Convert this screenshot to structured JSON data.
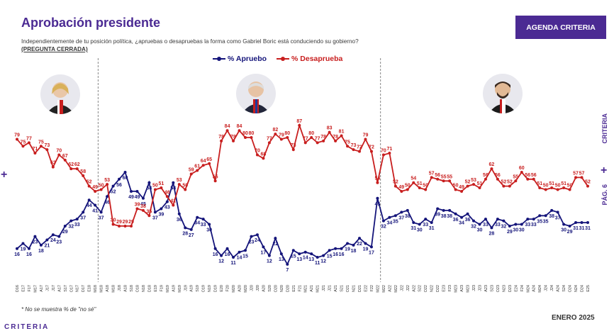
{
  "header": {
    "title": "Aprobación presidente",
    "subtitle": "Independientemente de tu posición política, ¿apruebas o desapruebas la forma como Gabriel Boric está conduciendo su gobierno?",
    "subtitle_tag": "(PREGUNTA CERRADA)",
    "brand_button": "AGENDA CRITERIA"
  },
  "side": {
    "criteria": "CRITERIA",
    "page": "PÁG. 6",
    "plus": "+"
  },
  "footer": {
    "footnote": "* No se muestra % de \"no sé\"",
    "date": "ENERO 2025",
    "logo": "CRITERIA"
  },
  "chart_data": {
    "type": "line",
    "legend_position": "top-center",
    "colors": {
      "aprueba": "#14147a",
      "desaprueba": "#c81e1e",
      "divider": "#888888"
    },
    "x": [
      "D16",
      "E17",
      "F17",
      "M17",
      "A17",
      "J17",
      "J17",
      "A17",
      "S17",
      "O17",
      "N17",
      "D17",
      "E18",
      "M18",
      "M18",
      "A18",
      "M18",
      "J18",
      "A18",
      "S18",
      "O18",
      "N18",
      "D18",
      "E19",
      "F19",
      "M19",
      "A19",
      "M19",
      "J19",
      "A19",
      "S19",
      "O19",
      "N19",
      "D19",
      "E20",
      "F20",
      "M20",
      "A20",
      "M20",
      "J20",
      "J20",
      "A20",
      "S20",
      "O20",
      "N20",
      "D20",
      "E21",
      "F21",
      "M21",
      "A21",
      "M21",
      "J21",
      "J21",
      "A21",
      "S21",
      "O21",
      "N21",
      "D21",
      "E22",
      "F22",
      "M22",
      "M22",
      "A22",
      "M22",
      "J22",
      "J22",
      "A22",
      "S22",
      "O22",
      "N22",
      "D22",
      "E23",
      "F23",
      "M23",
      "A23",
      "M23",
      "J23",
      "J23",
      "A23",
      "S23",
      "O23",
      "N23",
      "D23",
      "E24",
      "F24",
      "M24",
      "A24",
      "M24",
      "J24",
      "J24",
      "A24",
      "S24",
      "O24",
      "N24",
      "D24",
      "E25"
    ],
    "series": [
      {
        "name": "% Apruebo",
        "values": [
          16,
          19,
          16,
          23,
          18,
          21,
          24,
          23,
          29,
          32,
          33,
          37,
          44,
          41,
          37,
          46,
          52,
          56,
          60,
          49,
          49,
          45,
          54,
          37,
          39,
          43,
          54,
          36,
          28,
          27,
          34,
          33,
          30,
          16,
          12,
          16,
          11,
          14,
          15,
          23,
          24,
          17,
          12,
          22,
          13,
          7,
          15,
          13,
          14,
          13,
          11,
          12,
          15,
          16,
          16,
          19,
          18,
          22,
          19,
          17,
          45,
          32,
          34,
          35,
          37,
          38,
          31,
          30,
          33,
          31,
          39,
          38,
          38,
          36,
          34,
          36,
          32,
          30,
          33,
          28,
          33,
          32,
          29,
          30,
          30,
          33,
          33,
          35,
          35,
          38,
          37,
          30,
          29,
          31,
          31,
          31
        ]
      },
      {
        "name": "% Desaprueba",
        "values": [
          79,
          75,
          77,
          71,
          75,
          73,
          63,
          70,
          67,
          62,
          62,
          58,
          52,
          49,
          50,
          53,
          30,
          29,
          29,
          29,
          39,
          38,
          35,
          50,
          51,
          46,
          41,
          53,
          50,
          59,
          61,
          64,
          65,
          55,
          78,
          84,
          78,
          84,
          80,
          80,
          70,
          68,
          77,
          82,
          79,
          80,
          73,
          87,
          77,
          80,
          77,
          78,
          83,
          78,
          81,
          75,
          73,
          72,
          79,
          72,
          54,
          70,
          71,
          52,
          49,
          50,
          54,
          51,
          50,
          57,
          56,
          55,
          55,
          50,
          49,
          52,
          53,
          51,
          56,
          62,
          56,
          52,
          52,
          55,
          60,
          56,
          56,
          51,
          50,
          51,
          50,
          51,
          50,
          57,
          57,
          52
        ]
      }
    ],
    "dividers_after": [
      "M18",
      "M22"
    ],
    "ylim": [
      0,
      100
    ]
  }
}
